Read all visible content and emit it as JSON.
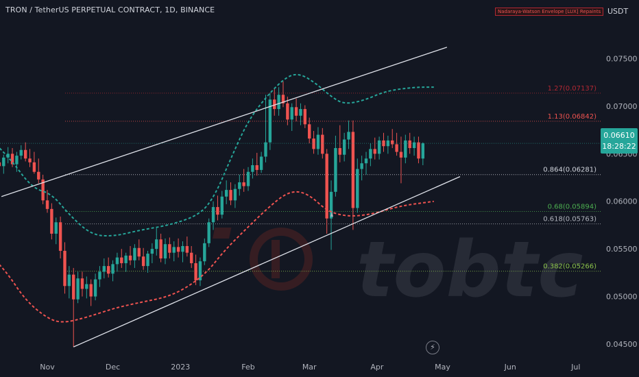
{
  "header": {
    "title": "TRON / TetherUS PERPETUAL CONTRACT, 1D, BINANCE",
    "indicator": "Nadaraya-Watson Envelope [LUX] Repaints",
    "currency": "USDT"
  },
  "price_badge": {
    "price": "0.06610",
    "countdown": "18:28:22"
  },
  "watermark": {
    "text": "tobtc"
  },
  "colors": {
    "background": "#131722",
    "up": "#26a69a",
    "down": "#ef5350",
    "upper_band": "#26a69a",
    "lower_band": "#ef5350",
    "trendline": "#e0e3eb",
    "badge": "#26a69a"
  },
  "chart_data": {
    "type": "candlestick",
    "title": "TRON / TetherUS PERPETUAL CONTRACT, 1D, BINANCE",
    "y_axis": {
      "ticks": [
        "0.07500",
        "0.07000",
        "0.06500",
        "0.06000",
        "0.05500",
        "0.05000",
        "0.04500"
      ],
      "range": [
        0.0437,
        0.079
      ]
    },
    "x_axis": {
      "ticks": [
        "Nov",
        "Dec",
        "2023",
        "Feb",
        "Mar",
        "Apr",
        "May",
        "Jun",
        "Jul"
      ]
    },
    "fib_levels": [
      {
        "label": "1.27(0.07137)",
        "value": 0.07137,
        "color": "#b22833"
      },
      {
        "label": "1.13(0.06842)",
        "value": 0.06842,
        "color": "#ef5350"
      },
      {
        "label": "0.864(0.06281)",
        "value": 0.06281,
        "color": "#d1d4dc"
      },
      {
        "label": "0.68(0.05894)",
        "value": 0.05894,
        "color": "#4caf50"
      },
      {
        "label": "0.618(0.05763)",
        "value": 0.05763,
        "color": "#b2b5be"
      },
      {
        "label": "0.382(0.05266)",
        "value": 0.05266,
        "color": "#8bc34a"
      }
    ],
    "current_price": 0.0661,
    "trendlines": [
      {
        "from": [
          "Oct 11",
          0.0605
        ],
        "to": [
          "May 3",
          0.0762
        ]
      },
      {
        "from": [
          "Nov 13",
          0.0447
        ],
        "to": [
          "May 9",
          0.0626
        ]
      }
    ],
    "upper_envelope": [
      [
        "Sep 10",
        0.0675
      ],
      [
        "Sep 22",
        0.0678
      ],
      [
        "Oct 3",
        0.0672
      ],
      [
        "Oct 15",
        0.0645
      ],
      [
        "Oct 25",
        0.0614
      ],
      [
        "Nov 3",
        0.0608
      ],
      [
        "Nov 11",
        0.0586
      ],
      [
        "Nov 21",
        0.0565
      ],
      [
        "Dec 1",
        0.0563
      ],
      [
        "Dec 14",
        0.057
      ],
      [
        "Dec 27",
        0.0575
      ],
      [
        "Jan 10",
        0.0586
      ],
      [
        "Jan 17",
        0.0607
      ],
      [
        "Jan 24",
        0.0645
      ],
      [
        "Feb 1",
        0.0685
      ],
      [
        "Feb 10",
        0.0712
      ],
      [
        "Feb 19",
        0.0732
      ],
      [
        "Feb 25",
        0.0734
      ],
      [
        "Mar 4",
        0.0724
      ],
      [
        "Mar 11",
        0.071
      ],
      [
        "Mar 17",
        0.0702
      ],
      [
        "Mar 26",
        0.0706
      ],
      [
        "Apr 5",
        0.0716
      ],
      [
        "Apr 18",
        0.072
      ],
      [
        "Apr 27",
        0.072
      ]
    ],
    "lower_envelope": [
      [
        "Sep 10",
        0.0553
      ],
      [
        "Sep 23",
        0.0556
      ],
      [
        "Oct 3",
        0.055
      ],
      [
        "Oct 13",
        0.0527
      ],
      [
        "Oct 22",
        0.0496
      ],
      [
        "Nov 1",
        0.0477
      ],
      [
        "Nov 8",
        0.0472
      ],
      [
        "Nov 19",
        0.0478
      ],
      [
        "Dec 2",
        0.0488
      ],
      [
        "Dec 14",
        0.0494
      ],
      [
        "Dec 25",
        0.0499
      ],
      [
        "Jan 3",
        0.0508
      ],
      [
        "Jan 13",
        0.0525
      ],
      [
        "Jan 21",
        0.0548
      ],
      [
        "Jan 31",
        0.0571
      ],
      [
        "Feb 10",
        0.0593
      ],
      [
        "Feb 18",
        0.0608
      ],
      [
        "Feb 24",
        0.0611
      ],
      [
        "Mar 2",
        0.0605
      ],
      [
        "Mar 9",
        0.059
      ],
      [
        "Mar 18",
        0.0584
      ],
      [
        "Mar 29",
        0.0586
      ],
      [
        "Apr 11",
        0.0595
      ],
      [
        "Apr 27",
        0.06
      ]
    ],
    "candles": [
      [
        "Sep 24",
        0.0626,
        0.0636,
        0.0614,
        0.0618
      ],
      [
        "Sep 26",
        0.0618,
        0.0632,
        0.061,
        0.0628
      ],
      [
        "Sep 28",
        0.0628,
        0.0638,
        0.0615,
        0.062
      ],
      [
        "Sep 30",
        0.062,
        0.063,
        0.0612,
        0.0625
      ],
      [
        "Oct 2",
        0.0625,
        0.0633,
        0.0616,
        0.0619
      ],
      [
        "Oct 4",
        0.0619,
        0.0629,
        0.0613,
        0.0623
      ],
      [
        "Oct 6",
        0.0623,
        0.064,
        0.0618,
        0.0636
      ],
      [
        "Oct 8",
        0.0636,
        0.0647,
        0.0628,
        0.0641
      ],
      [
        "Oct 10",
        0.0641,
        0.065,
        0.0633,
        0.0637
      ],
      [
        "Oct 12",
        0.0637,
        0.0649,
        0.0629,
        0.0646
      ],
      [
        "Oct 14",
        0.0646,
        0.0657,
        0.064,
        0.065
      ],
      [
        "Oct 16",
        0.065,
        0.0656,
        0.0636,
        0.0639
      ],
      [
        "Oct 18",
        0.0639,
        0.0652,
        0.0631,
        0.0648
      ],
      [
        "Oct 20",
        0.0648,
        0.0659,
        0.0644,
        0.0654
      ],
      [
        "Oct 22",
        0.0654,
        0.0662,
        0.0642,
        0.0645
      ],
      [
        "Oct 24",
        0.0645,
        0.0655,
        0.0636,
        0.0641
      ],
      [
        "Oct 26",
        0.0641,
        0.0652,
        0.0629,
        0.0631
      ],
      [
        "Oct 28",
        0.0631,
        0.0645,
        0.0619,
        0.0623
      ],
      [
        "Oct 30",
        0.0623,
        0.0628,
        0.0597,
        0.0601
      ],
      [
        "Nov 1",
        0.0601,
        0.0612,
        0.0588,
        0.0592
      ],
      [
        "Nov 3",
        0.0592,
        0.0598,
        0.056,
        0.0566
      ],
      [
        "Nov 5",
        0.0566,
        0.0583,
        0.0555,
        0.0578
      ],
      [
        "Nov 7",
        0.0578,
        0.0584,
        0.054,
        0.0548
      ],
      [
        "Nov 9",
        0.0548,
        0.0557,
        0.0503,
        0.0511
      ],
      [
        "Nov 11",
        0.0511,
        0.0532,
        0.0498,
        0.0523
      ],
      [
        "Nov 13",
        0.0523,
        0.053,
        0.0447,
        0.0497
      ],
      [
        "Nov 15",
        0.0497,
        0.0526,
        0.0493,
        0.0519
      ],
      [
        "Nov 17",
        0.0519,
        0.0526,
        0.05,
        0.0508
      ],
      [
        "Nov 19",
        0.0508,
        0.0521,
        0.0498,
        0.0513
      ],
      [
        "Nov 21",
        0.0513,
        0.0518,
        0.049,
        0.05
      ],
      [
        "Nov 23",
        0.05,
        0.0524,
        0.0496,
        0.0518
      ],
      [
        "Nov 25",
        0.0518,
        0.0532,
        0.051,
        0.0526
      ],
      [
        "Nov 27",
        0.0526,
        0.054,
        0.0519,
        0.0532
      ],
      [
        "Nov 29",
        0.0532,
        0.0541,
        0.052,
        0.0524
      ],
      [
        "Dec 1",
        0.0524,
        0.0538,
        0.0516,
        0.0534
      ],
      [
        "Dec 3",
        0.0534,
        0.0546,
        0.0526,
        0.0541
      ],
      [
        "Dec 5",
        0.0541,
        0.055,
        0.053,
        0.0535
      ],
      [
        "Dec 7",
        0.0535,
        0.0546,
        0.0526,
        0.0543
      ],
      [
        "Dec 9",
        0.0543,
        0.0553,
        0.0533,
        0.0538
      ],
      [
        "Dec 11",
        0.0538,
        0.0555,
        0.053,
        0.0551
      ],
      [
        "Dec 13",
        0.0551,
        0.056,
        0.0538,
        0.0542
      ],
      [
        "Dec 15",
        0.0542,
        0.0551,
        0.0528,
        0.0532
      ],
      [
        "Dec 17",
        0.0532,
        0.0548,
        0.0525,
        0.0545
      ],
      [
        "Dec 19",
        0.0545,
        0.0556,
        0.0535,
        0.055
      ],
      [
        "Dec 21",
        0.055,
        0.0572,
        0.0543,
        0.056
      ],
      [
        "Dec 23",
        0.056,
        0.0566,
        0.0536,
        0.054
      ],
      [
        "Dec 25",
        0.054,
        0.0561,
        0.0534,
        0.0555
      ],
      [
        "Dec 27",
        0.0555,
        0.0562,
        0.054,
        0.0546
      ],
      [
        "Dec 29",
        0.0546,
        0.0558,
        0.0537,
        0.0552
      ],
      [
        "Dec 31",
        0.0552,
        0.0561,
        0.0541,
        0.0547
      ],
      [
        "Jan 2",
        0.0547,
        0.0558,
        0.0536,
        0.0553
      ],
      [
        "Jan 4",
        0.0553,
        0.0563,
        0.0542,
        0.0546
      ],
      [
        "Jan 6",
        0.0546,
        0.0553,
        0.053,
        0.0535
      ],
      [
        "Jan 8",
        0.0535,
        0.0544,
        0.0512,
        0.0517
      ],
      [
        "Jan 10",
        0.0517,
        0.0541,
        0.0511,
        0.0537
      ],
      [
        "Jan 12",
        0.0537,
        0.0561,
        0.0533,
        0.0556
      ],
      [
        "Jan 14",
        0.0556,
        0.0582,
        0.0552,
        0.0578
      ],
      [
        "Jan 16",
        0.0578,
        0.06,
        0.057,
        0.0594
      ],
      [
        "Jan 18",
        0.0594,
        0.0606,
        0.058,
        0.0586
      ],
      [
        "Jan 20",
        0.0586,
        0.0611,
        0.0582,
        0.0605
      ],
      [
        "Jan 22",
        0.0605,
        0.0622,
        0.0597,
        0.0612
      ],
      [
        "Jan 24",
        0.0612,
        0.062,
        0.0596,
        0.0601
      ],
      [
        "Jan 26",
        0.0601,
        0.0618,
        0.0593,
        0.0613
      ],
      [
        "Jan 28",
        0.0613,
        0.0628,
        0.0606,
        0.062
      ],
      [
        "Jan 30",
        0.062,
        0.0634,
        0.061,
        0.0616
      ],
      [
        "Feb 1",
        0.0616,
        0.0636,
        0.0611,
        0.0631
      ],
      [
        "Feb 3",
        0.0631,
        0.0645,
        0.0624,
        0.0638
      ],
      [
        "Feb 5",
        0.0638,
        0.0651,
        0.0627,
        0.0633
      ],
      [
        "Feb 7",
        0.0633,
        0.0652,
        0.063,
        0.0647
      ],
      [
        "Feb 9",
        0.0647,
        0.0712,
        0.0641,
        0.0662
      ],
      [
        "Feb 11",
        0.0662,
        0.0714,
        0.0654,
        0.0707
      ],
      [
        "Feb 13",
        0.0707,
        0.0718,
        0.069,
        0.0697
      ],
      [
        "Feb 15",
        0.0697,
        0.072,
        0.069,
        0.0712
      ],
      [
        "Feb 17",
        0.0712,
        0.0726,
        0.0699,
        0.0703
      ],
      [
        "Feb 19",
        0.0703,
        0.071,
        0.068,
        0.0686
      ],
      [
        "Feb 21",
        0.0686,
        0.0703,
        0.0674,
        0.0699
      ],
      [
        "Feb 23",
        0.0699,
        0.0708,
        0.0684,
        0.069
      ],
      [
        "Feb 25",
        0.069,
        0.0703,
        0.068,
        0.0697
      ],
      [
        "Feb 27",
        0.0697,
        0.0701,
        0.0677,
        0.0681
      ],
      [
        "Mar 1",
        0.0681,
        0.0688,
        0.0661,
        0.0666
      ],
      [
        "Mar 3",
        0.0666,
        0.0674,
        0.065,
        0.0655
      ],
      [
        "Mar 5",
        0.0655,
        0.0678,
        0.0649,
        0.067
      ],
      [
        "Mar 7",
        0.067,
        0.0677,
        0.0645,
        0.065
      ],
      [
        "Mar 9",
        0.065,
        0.0655,
        0.0566,
        0.0582
      ],
      [
        "Mar 11",
        0.0582,
        0.0622,
        0.0549,
        0.061
      ],
      [
        "Mar 13",
        0.061,
        0.0669,
        0.0605,
        0.0656
      ],
      [
        "Mar 15",
        0.0656,
        0.068,
        0.0641,
        0.0649
      ],
      [
        "Mar 17",
        0.0649,
        0.0672,
        0.0642,
        0.0665
      ],
      [
        "Mar 19",
        0.0665,
        0.0685,
        0.0655,
        0.0673
      ],
      [
        "Mar 21",
        0.0673,
        0.0685,
        0.057,
        0.0593
      ],
      [
        "Mar 23",
        0.0593,
        0.0645,
        0.0588,
        0.0634
      ],
      [
        "Mar 25",
        0.0634,
        0.0648,
        0.0622,
        0.064
      ],
      [
        "Mar 27",
        0.064,
        0.0652,
        0.0628,
        0.0645
      ],
      [
        "Mar 29",
        0.0645,
        0.0661,
        0.0637,
        0.0655
      ],
      [
        "Mar 31",
        0.0655,
        0.0667,
        0.0644,
        0.065
      ],
      [
        "Apr 2",
        0.065,
        0.0668,
        0.0644,
        0.0664
      ],
      [
        "Apr 4",
        0.0664,
        0.0672,
        0.0652,
        0.0658
      ],
      [
        "Apr 6",
        0.0658,
        0.0669,
        0.065,
        0.0664
      ],
      [
        "Apr 8",
        0.0664,
        0.0676,
        0.0656,
        0.066
      ],
      [
        "Apr 10",
        0.066,
        0.0672,
        0.0648,
        0.0652
      ],
      [
        "Apr 12",
        0.0652,
        0.0668,
        0.0619,
        0.0646
      ],
      [
        "Apr 14",
        0.0646,
        0.067,
        0.064,
        0.0664
      ],
      [
        "Apr 16",
        0.0664,
        0.0672,
        0.065,
        0.0656
      ],
      [
        "Apr 18",
        0.0656,
        0.0668,
        0.0648,
        0.0662
      ],
      [
        "Apr 20",
        0.0662,
        0.0668,
        0.064,
        0.0645
      ],
      [
        "Apr 22",
        0.0645,
        0.0662,
        0.0638,
        0.0661
      ]
    ]
  }
}
